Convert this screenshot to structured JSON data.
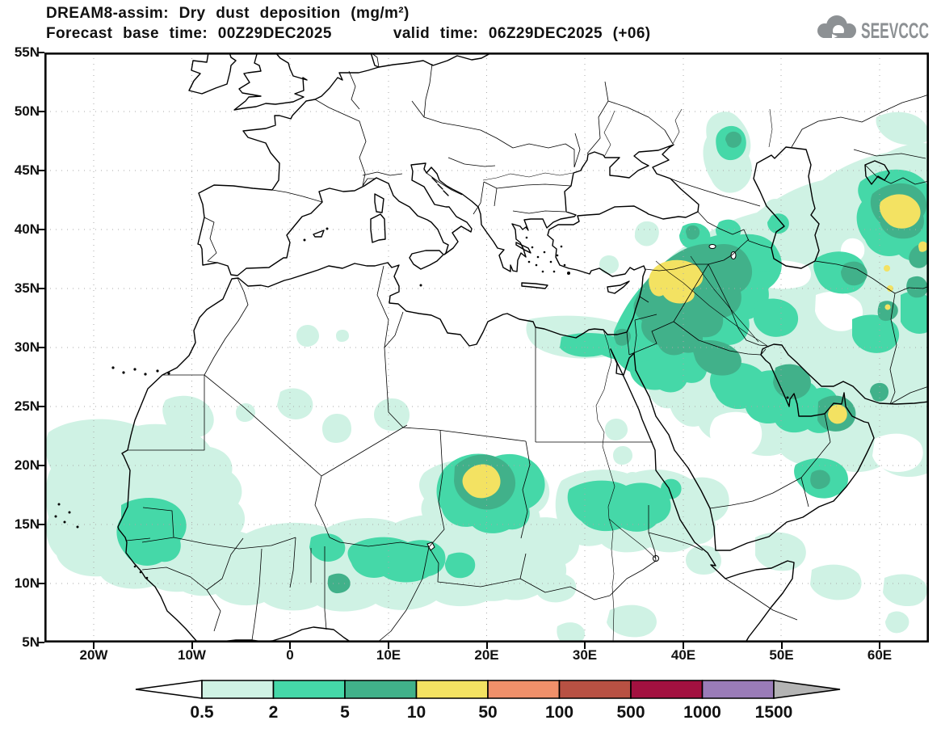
{
  "header": {
    "title_line1": "DREAM8-assim: Dry dust deposition (mg/m²)",
    "title_line2": "Forecast base time: 00Z29DEC2025      valid time: 06Z29DEC2025 (+06)"
  },
  "logo": {
    "text": "SEEVCCC",
    "color": "#8d9194"
  },
  "axes": {
    "lat_ticks": [
      "55N",
      "50N",
      "45N",
      "40N",
      "35N",
      "30N",
      "25N",
      "20N",
      "15N",
      "10N",
      "5N"
    ],
    "lon_ticks": [
      "20W",
      "10W",
      "0",
      "10E",
      "20E",
      "30E",
      "40E",
      "50E",
      "60E"
    ]
  },
  "colorbar": {
    "unit": "mg/m²",
    "levels": [
      "0.5",
      "2",
      "5",
      "10",
      "50",
      "100",
      "500",
      "1000",
      "1500"
    ],
    "colors": {
      "below": "#ffffff",
      "c1": "#cff2e4",
      "c2": "#45d8a8",
      "c3": "#41b18a",
      "c4": "#f3e262",
      "c5": "#f0906a",
      "c6": "#b85143",
      "c7": "#a31140",
      "c8": "#9a7cb8",
      "above": "#b4b4b4"
    }
  },
  "map_summary": {
    "model": "DREAM8-assim",
    "variable": "Dry dust deposition",
    "hotspots": [
      {
        "area": "Bodele (Chad)",
        "peak_level": "10-50 mg/m²"
      },
      {
        "area": "Northern Syria / Iraq",
        "peak_level": "10-50 mg/m²"
      },
      {
        "area": "Turkmenistan (NE of Caspian region)",
        "peak_level": "10-50 mg/m²"
      },
      {
        "area": "United Arab Emirates",
        "peak_level": "10-50 mg/m²"
      },
      {
        "area": "West Africa / Sahel",
        "peak_level": "2-10 mg/m²"
      },
      {
        "area": "Persian Gulf / Iran",
        "peak_level": "5-10 mg/m²"
      }
    ]
  }
}
